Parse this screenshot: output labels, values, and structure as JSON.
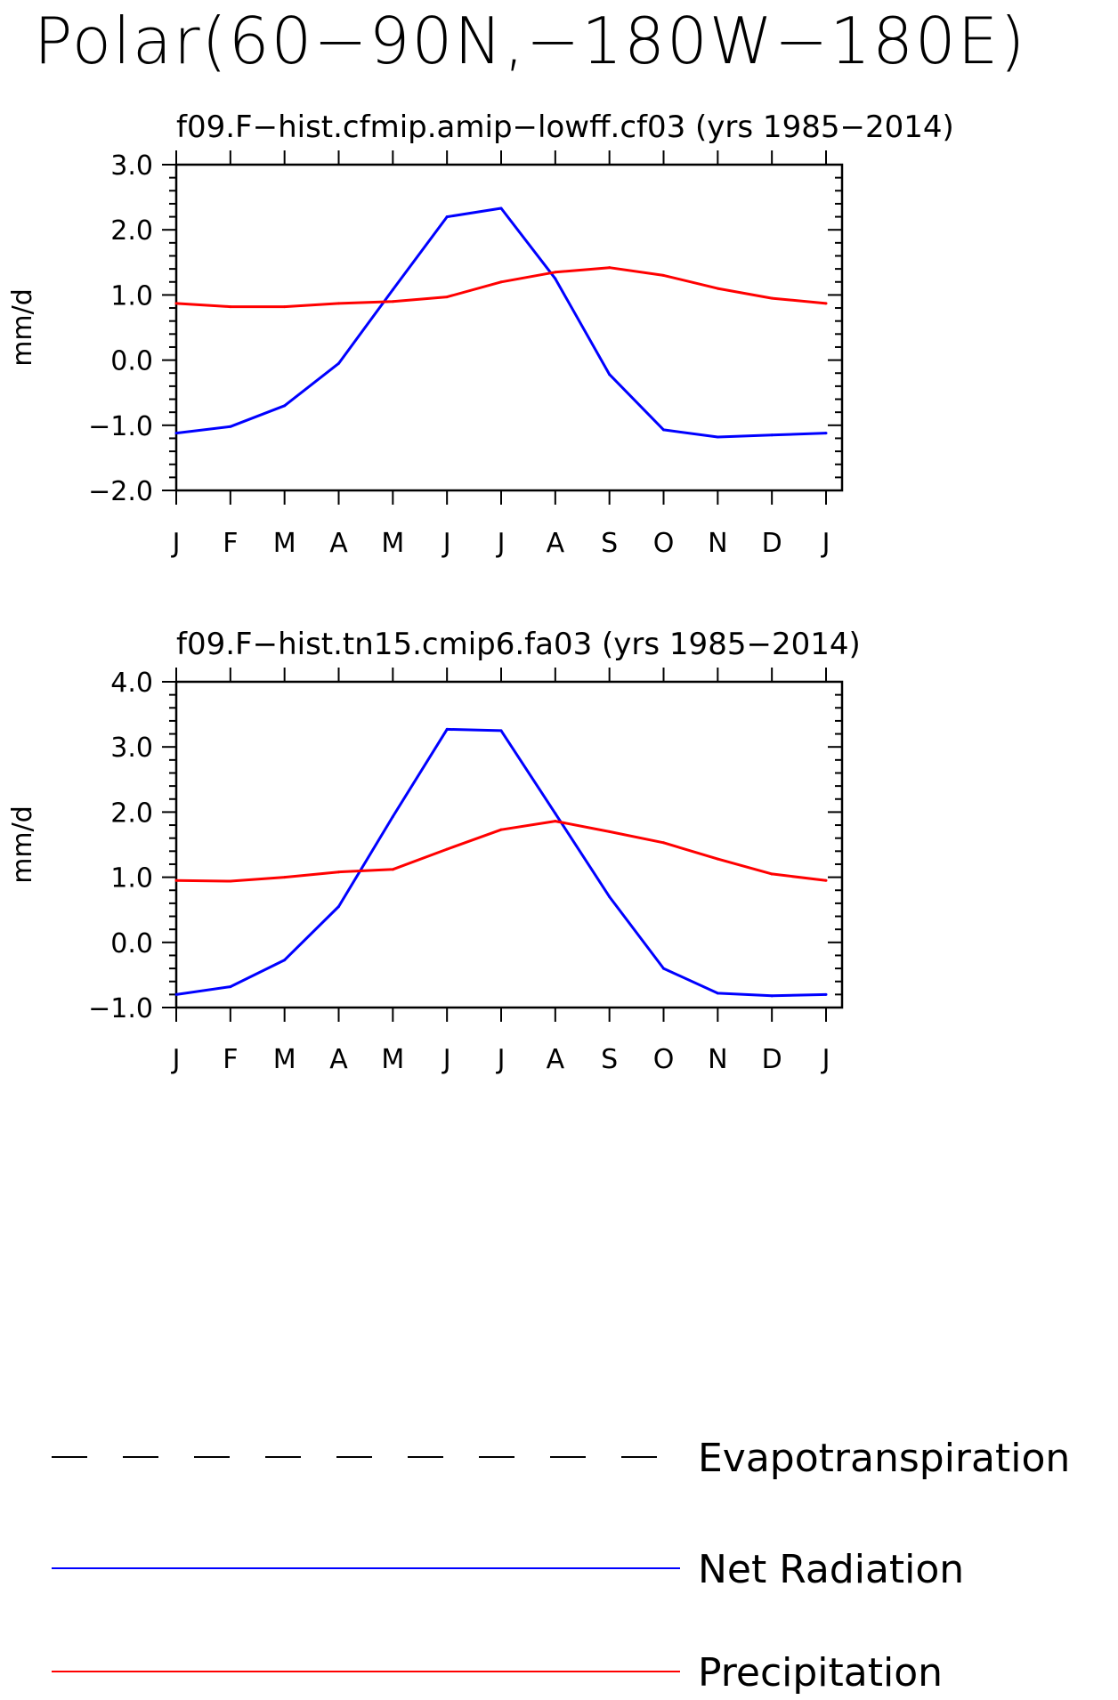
{
  "title": "Polar(60−90N,−180W−180E)",
  "colors": {
    "evapotranspiration": "#000000",
    "net_radiation": "#0000ff",
    "precipitation": "#ff0000"
  },
  "legend": [
    {
      "name": "Evapotranspiration",
      "style": "dashed",
      "color": "#000000"
    },
    {
      "name": "Net Radiation",
      "style": "solid",
      "color": "#0000ff"
    },
    {
      "name": "Precipitation",
      "style": "solid",
      "color": "#ff0000"
    }
  ],
  "chart_data": [
    {
      "type": "line",
      "title": "f09.F−hist.cfmip.amip−lowff.cf03 (yrs 1985−2014)",
      "ylabel": "mm/d",
      "xlabel": "",
      "categories": [
        "J",
        "F",
        "M",
        "A",
        "M",
        "J",
        "J",
        "A",
        "S",
        "O",
        "N",
        "D",
        "J"
      ],
      "ylim": [
        -2.0,
        3.0
      ],
      "yticks": [
        "3.0",
        "2.0",
        "1.0",
        "0.0",
        "−1.0",
        "−2.0"
      ],
      "ytick_values": [
        3.0,
        2.0,
        1.0,
        0.0,
        -1.0,
        -2.0
      ],
      "series": [
        {
          "name": "Net Radiation",
          "color": "#0000ff",
          "values": [
            -1.12,
            -1.02,
            -0.7,
            -0.05,
            1.08,
            2.2,
            2.33,
            1.25,
            -0.22,
            -1.07,
            -1.18,
            -1.15,
            -1.12
          ]
        },
        {
          "name": "Precipitation",
          "color": "#ff0000",
          "values": [
            0.87,
            0.82,
            0.82,
            0.87,
            0.9,
            0.97,
            1.2,
            1.35,
            1.42,
            1.3,
            1.1,
            0.95,
            0.87
          ]
        }
      ]
    },
    {
      "type": "line",
      "title": "f09.F−hist.tn15.cmip6.fa03 (yrs 1985−2014)",
      "ylabel": "mm/d",
      "xlabel": "",
      "categories": [
        "J",
        "F",
        "M",
        "A",
        "M",
        "J",
        "J",
        "A",
        "S",
        "O",
        "N",
        "D",
        "J"
      ],
      "ylim": [
        -1.0,
        4.0
      ],
      "yticks": [
        "4.0",
        "3.0",
        "2.0",
        "1.0",
        "0.0",
        "−1.0"
      ],
      "ytick_values": [
        4.0,
        3.0,
        2.0,
        1.0,
        0.0,
        -1.0
      ],
      "series": [
        {
          "name": "Net Radiation",
          "color": "#0000ff",
          "values": [
            -0.8,
            -0.68,
            -0.27,
            0.55,
            1.93,
            3.27,
            3.25,
            1.98,
            0.7,
            -0.4,
            -0.78,
            -0.82,
            -0.8
          ]
        },
        {
          "name": "Precipitation",
          "color": "#ff0000",
          "values": [
            0.95,
            0.94,
            1.0,
            1.08,
            1.12,
            1.43,
            1.73,
            1.86,
            1.7,
            1.53,
            1.28,
            1.05,
            0.95
          ]
        }
      ]
    }
  ]
}
